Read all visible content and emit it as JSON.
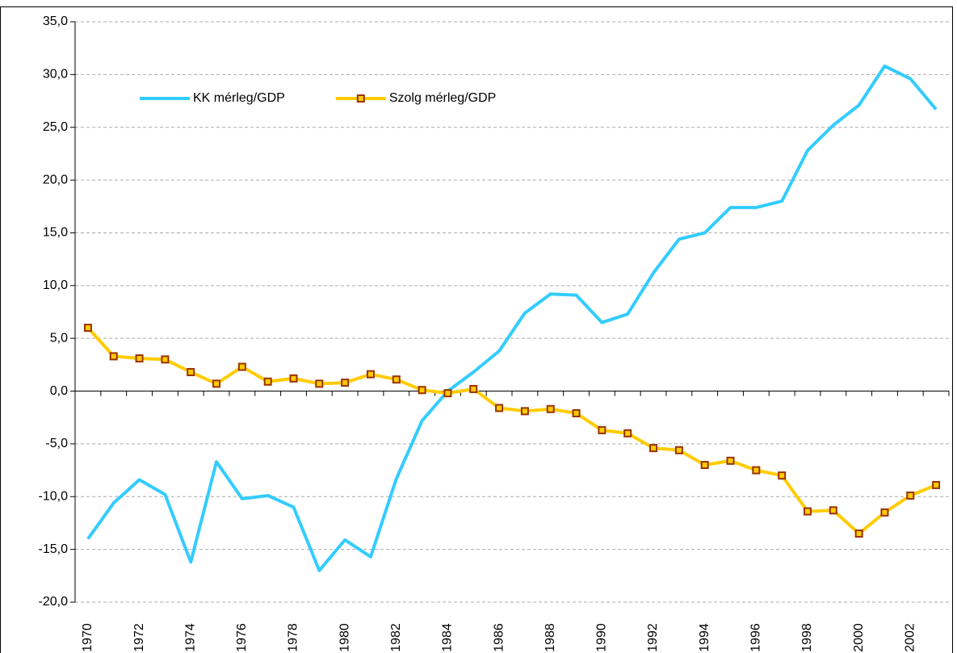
{
  "chart_data": {
    "type": "line",
    "categories": [
      "1970",
      null,
      "1972",
      null,
      "1974",
      null,
      "1976",
      null,
      "1978",
      null,
      "1980",
      null,
      "1982",
      null,
      "1984",
      null,
      "1986",
      null,
      "1988",
      null,
      "1990",
      null,
      "1992",
      null,
      "1994",
      null,
      "1996",
      null,
      "1998",
      null,
      "2000",
      null,
      "2002",
      null
    ],
    "series": [
      {
        "name": "KK mérleg/GDP",
        "color": "#33ccff",
        "marker": false,
        "values": [
          -14.0,
          -10.6,
          -8.4,
          -9.8,
          -16.2,
          -6.7,
          -10.2,
          -9.9,
          -11.0,
          -17.0,
          -14.1,
          -15.7,
          -8.3,
          -2.8,
          0.0,
          1.8,
          3.8,
          7.4,
          9.2,
          9.1,
          6.5,
          7.3,
          11.2,
          14.4,
          15.0,
          17.4,
          17.4,
          18.0,
          22.8,
          25.2,
          27.1,
          30.8,
          29.6,
          26.7
        ]
      },
      {
        "name": "Szolg mérleg/GDP",
        "color": "#ffcc00",
        "marker": true,
        "marker_color": "#993300",
        "values": [
          6.0,
          3.3,
          3.1,
          3.0,
          1.8,
          0.7,
          2.3,
          0.9,
          1.2,
          0.7,
          0.8,
          1.6,
          1.1,
          0.1,
          -0.2,
          0.2,
          -1.6,
          -1.9,
          -1.7,
          -2.1,
          -3.7,
          -4.0,
          -5.4,
          -5.6,
          -7.0,
          -6.6,
          -7.5,
          -8.0,
          -11.4,
          -11.3,
          -13.5,
          -11.5,
          -9.9,
          -8.9
        ]
      }
    ],
    "ylim": [
      -20,
      35
    ],
    "yticks": [
      {
        "value": -20,
        "label": "-20,0"
      },
      {
        "value": -15,
        "label": "-15,0"
      },
      {
        "value": -10,
        "label": "-10,0"
      },
      {
        "value": -5,
        "label": "-5,0"
      },
      {
        "value": 0,
        "label": "0,0"
      },
      {
        "value": 5,
        "label": "5,0"
      },
      {
        "value": 10,
        "label": "10,0"
      },
      {
        "value": 15,
        "label": "15,0"
      },
      {
        "value": 20,
        "label": "20,0"
      },
      {
        "value": 25,
        "label": "25,0"
      },
      {
        "value": 30,
        "label": "30,0"
      },
      {
        "value": 35,
        "label": "35,0"
      }
    ],
    "grid": true,
    "legend": "top-left"
  }
}
